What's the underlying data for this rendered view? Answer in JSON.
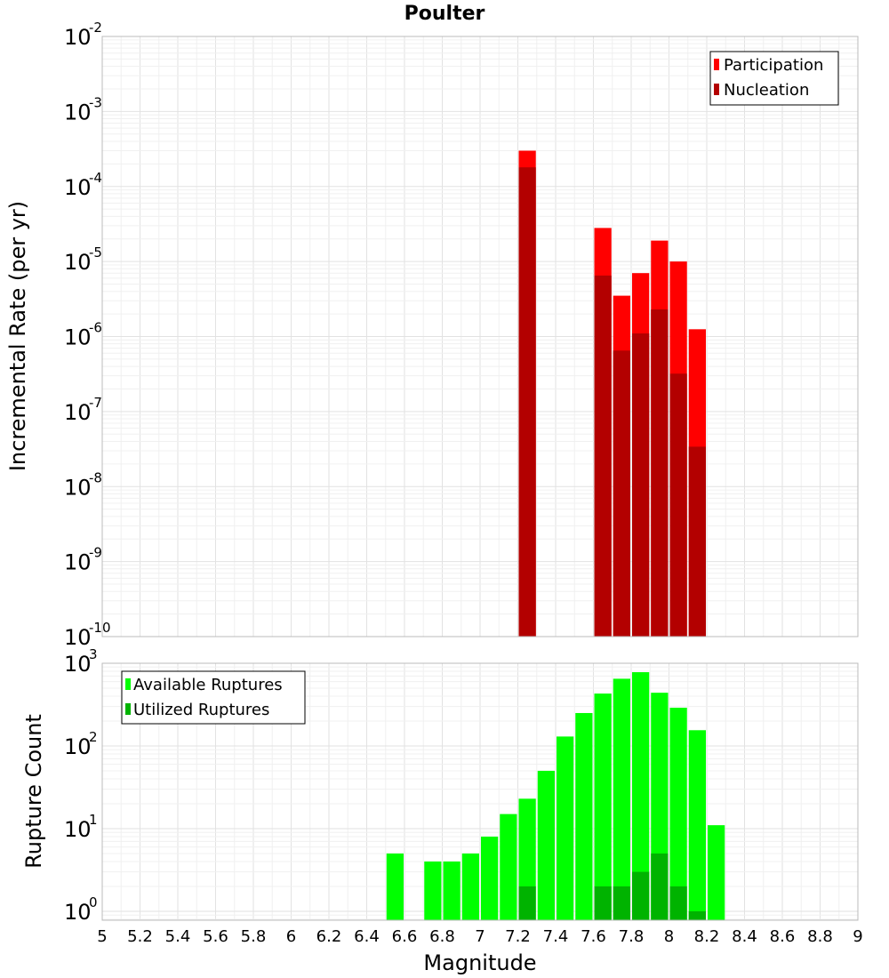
{
  "chart_data": [
    {
      "type": "bar",
      "title": "Poulter",
      "ylabel": "Incremental Rate (per yr)",
      "xlabel": "",
      "yscale": "log",
      "ylim": [
        1e-10,
        0.01
      ],
      "xlim": [
        5,
        9
      ],
      "y_tick_exponents": [
        -10,
        -9,
        -8,
        -7,
        -6,
        -5,
        -4,
        -3,
        -2
      ],
      "legend": {
        "placement": "top-right"
      },
      "grid": true,
      "series": [
        {
          "name": "Participation",
          "color": "#ff0000",
          "x": [
            7.25,
            7.65,
            7.75,
            7.85,
            7.95,
            8.05,
            8.15
          ],
          "values": [
            0.0003,
            2.8e-05,
            3.5e-06,
            7e-06,
            1.9e-05,
            1e-05,
            1.25e-06
          ]
        },
        {
          "name": "Nucleation",
          "color": "#b30000",
          "x": [
            7.25,
            7.65,
            7.75,
            7.85,
            7.95,
            8.05,
            8.15
          ],
          "values": [
            0.00018,
            6.5e-06,
            6.5e-07,
            1.1e-06,
            2.3e-06,
            3.2e-07,
            3.4e-08
          ]
        }
      ]
    },
    {
      "type": "bar",
      "title": "",
      "ylabel": "Rupture Count",
      "xlabel": "Magnitude",
      "yscale": "log",
      "ylim": [
        0.78,
        1000
      ],
      "xlim": [
        5,
        9
      ],
      "x_ticks": [
        "5",
        "5.2",
        "5.4",
        "5.6",
        "5.8",
        "6",
        "6.2",
        "6.4",
        "6.6",
        "6.8",
        "7",
        "7.2",
        "7.4",
        "7.6",
        "7.8",
        "8",
        "8.2",
        "8.4",
        "8.6",
        "8.8",
        "9"
      ],
      "y_tick_exponents": [
        0,
        1,
        2,
        3
      ],
      "legend": {
        "placement": "top-left"
      },
      "grid": true,
      "series": [
        {
          "name": "Available Ruptures",
          "color": "#00ff00",
          "x": [
            6.55,
            6.75,
            6.85,
            6.95,
            7.05,
            7.15,
            7.25,
            7.35,
            7.45,
            7.55,
            7.65,
            7.75,
            7.85,
            7.95,
            8.05,
            8.15,
            8.25
          ],
          "values": [
            5,
            4,
            4,
            5,
            8,
            15,
            23,
            50,
            130,
            250,
            430,
            650,
            780,
            440,
            290,
            155,
            11
          ]
        },
        {
          "name": "Utilized Ruptures",
          "color": "#00b300",
          "x": [
            7.25,
            7.65,
            7.75,
            7.85,
            7.95,
            8.05,
            8.15
          ],
          "values": [
            2,
            2,
            2,
            3,
            5,
            2,
            1
          ]
        }
      ]
    }
  ]
}
